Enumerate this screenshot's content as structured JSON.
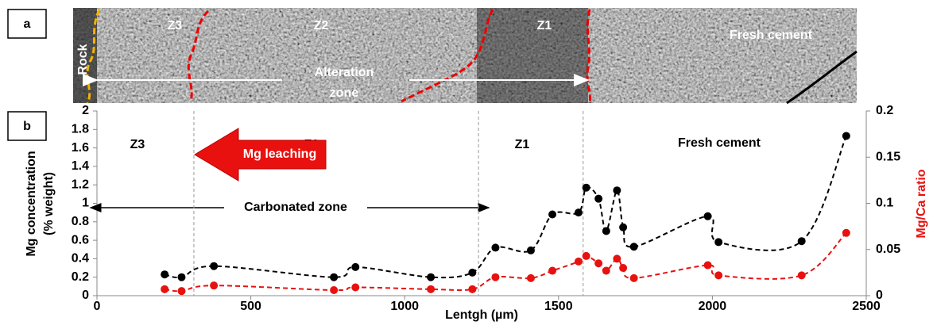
{
  "panel_labels": [
    "a",
    "b"
  ],
  "micrograph": {
    "labels": {
      "rock": "Rock",
      "z3": "Z3",
      "z2": "Z2",
      "z1": "Z1",
      "fresh": "Fresh cement",
      "alteration_1": "Alteration",
      "alteration_2": "zone"
    }
  },
  "chart_data": {
    "type": "line",
    "x_label": "Lentgh (µm)",
    "y_label": [
      "Mg concentration",
      "(% weight)"
    ],
    "y2_label": "Mg/Ca ratio",
    "annotations": {
      "z3": "Z3",
      "z2": "Z2",
      "z1": "Z1",
      "fresh": "Fresh cement",
      "leaching": "Mg leaching",
      "carbonated": "Carbonated zone"
    },
    "zone_boundaries": [
      315,
      1240,
      1580
    ],
    "x": [
      220,
      275,
      380,
      770,
      840,
      1085,
      1220,
      1295,
      1410,
      1480,
      1565,
      1590,
      1630,
      1655,
      1690,
      1710,
      1745,
      1985,
      2020,
      2290,
      2435
    ],
    "series": [
      {
        "color": "#000000",
        "axis": "y",
        "values": [
          0.23,
          0.2,
          0.32,
          0.2,
          0.31,
          0.2,
          0.25,
          0.52,
          0.49,
          0.88,
          0.9,
          1.17,
          1.05,
          0.7,
          1.14,
          0.74,
          0.53,
          0.86,
          0.58,
          0.59,
          1.73
        ]
      },
      {
        "color": "#e8110f",
        "axis": "y2",
        "values": [
          0.007,
          0.005,
          0.011,
          0.006,
          0.009,
          0.007,
          0.007,
          0.02,
          0.019,
          0.027,
          0.037,
          0.043,
          0.035,
          0.027,
          0.04,
          0.03,
          0.019,
          0.033,
          0.022,
          0.022,
          0.068
        ]
      }
    ],
    "xlim": [
      0,
      2500
    ],
    "xticks": [
      0,
      500,
      1000,
      1500,
      2000,
      2500
    ],
    "ylim": [
      0,
      2
    ],
    "yticks": [
      0,
      0.2,
      0.4,
      0.6,
      0.8,
      1,
      1.2,
      1.4,
      1.6,
      1.8,
      2
    ],
    "y2lim": [
      0,
      0.2
    ],
    "y2ticks": [
      0,
      0.05,
      0.1,
      0.15,
      0.2
    ]
  }
}
